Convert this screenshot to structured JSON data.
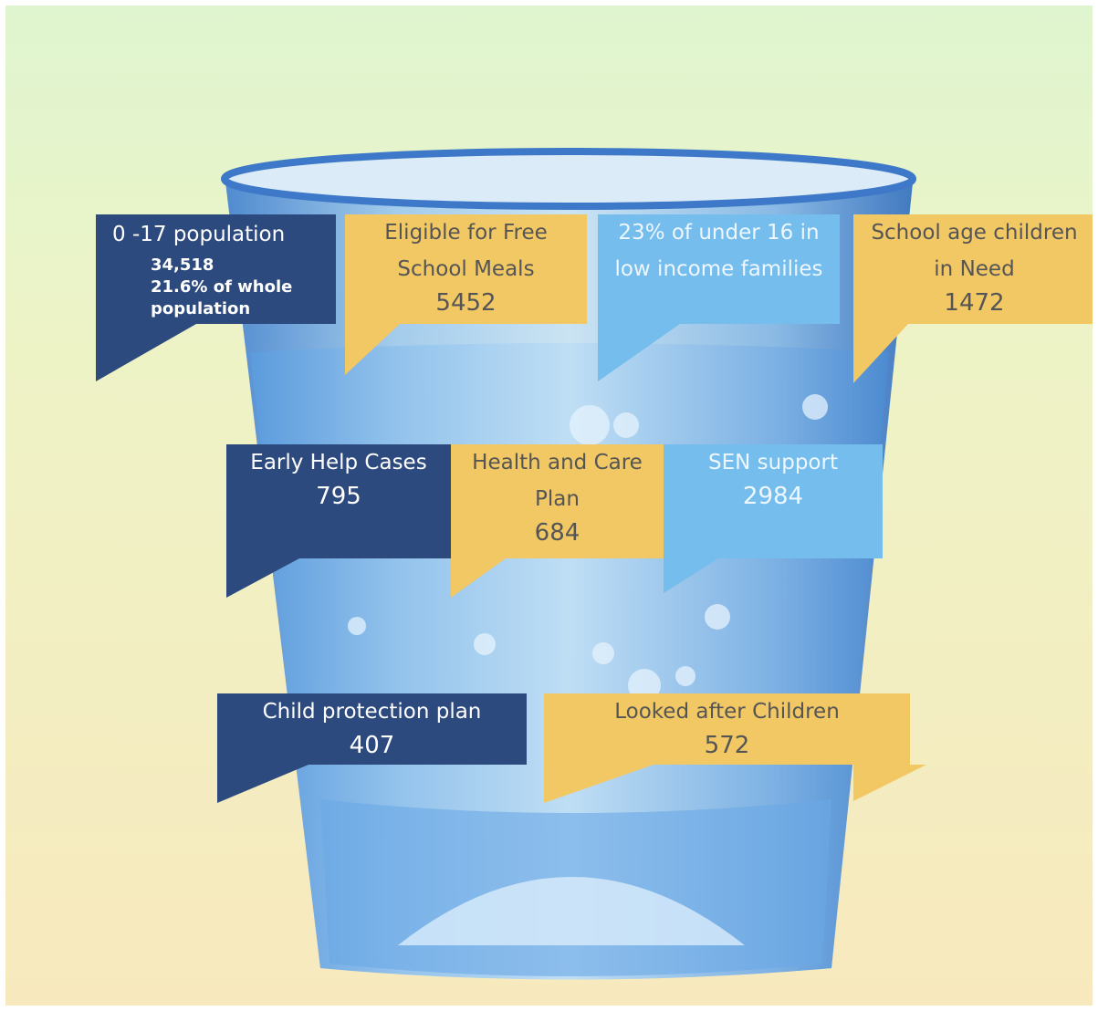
{
  "callouts": [
    {
      "title": "0 -17 population",
      "details": [
        "34,518",
        "21.6% of whole population"
      ]
    },
    {
      "title": "Eligible for Free School Meals",
      "value": 5452
    },
    {
      "title": "23% of under 16 in low income families"
    },
    {
      "title": "School age children in Need",
      "value": 1472
    },
    {
      "title": "Early Help Cases",
      "value": 795
    },
    {
      "title": "Health and Care Plan",
      "value": 684
    },
    {
      "title": "SEN support",
      "value": 2984
    },
    {
      "title": "Child protection plan",
      "value": 407
    },
    {
      "title": "Looked after Children",
      "value": 572
    }
  ]
}
